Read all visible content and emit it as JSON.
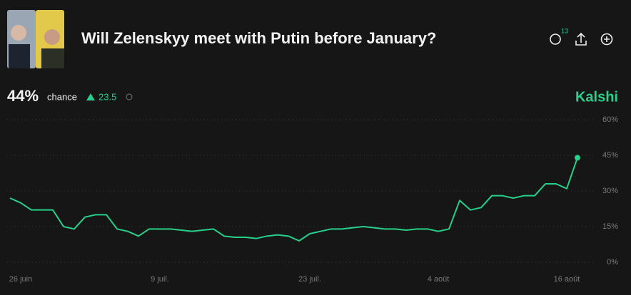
{
  "header": {
    "title": "Will Zelenskyy meet with Putin before January?",
    "comments": 13
  },
  "stats": {
    "probability": "44%",
    "probability_caption": "chance",
    "change": 23.5,
    "brand": "Kalshi"
  },
  "chart_data": {
    "type": "line",
    "x": [
      "06-25",
      "06-26",
      "06-27",
      "06-28",
      "06-29",
      "06-30",
      "07-01",
      "07-02",
      "07-03",
      "07-04",
      "07-05",
      "07-06",
      "07-07",
      "07-08",
      "07-09",
      "07-10",
      "07-11",
      "07-12",
      "07-13",
      "07-14",
      "07-15",
      "07-16",
      "07-17",
      "07-18",
      "07-19",
      "07-20",
      "07-21",
      "07-22",
      "07-23",
      "07-24",
      "07-25",
      "07-26",
      "07-27",
      "07-28",
      "07-29",
      "07-30",
      "07-31",
      "08-01",
      "08-02",
      "08-03",
      "08-04",
      "08-05",
      "08-06",
      "08-07",
      "08-08",
      "08-09",
      "08-10",
      "08-11",
      "08-12",
      "08-13",
      "08-14",
      "08-15",
      "08-16",
      "08-17"
    ],
    "series": [
      {
        "color": "#27d08b",
        "values": [
          27,
          25,
          22,
          22,
          22,
          15,
          14,
          19,
          20,
          20,
          14,
          13,
          11,
          14,
          14,
          14,
          13.5,
          13,
          13.5,
          14,
          11,
          10.5,
          10.5,
          10,
          11,
          11.5,
          11,
          9,
          12,
          13,
          14,
          14,
          14.5,
          15,
          14.5,
          14,
          14,
          13.5,
          14,
          14,
          13,
          14,
          26,
          22,
          23,
          28,
          28,
          27,
          28,
          28,
          33,
          33,
          31,
          44
        ]
      }
    ],
    "xlim": [
      "06-25",
      "08-18"
    ],
    "xticks": [
      {
        "value": "06-26",
        "label": "26 juin"
      },
      {
        "value": "07-09",
        "label": "9 juil."
      },
      {
        "value": "07-23",
        "label": "23 juil."
      },
      {
        "value": "08-04",
        "label": "4 août"
      },
      {
        "value": "08-16",
        "label": "16 août"
      }
    ],
    "ylim": [
      0,
      60
    ],
    "yticks": [
      {
        "value": 0,
        "label": "0%"
      },
      {
        "value": 15,
        "label": "15%"
      },
      {
        "value": 30,
        "label": "30%"
      },
      {
        "value": 45,
        "label": "45%"
      },
      {
        "value": 60,
        "label": "60%"
      }
    ],
    "grid": true
  }
}
